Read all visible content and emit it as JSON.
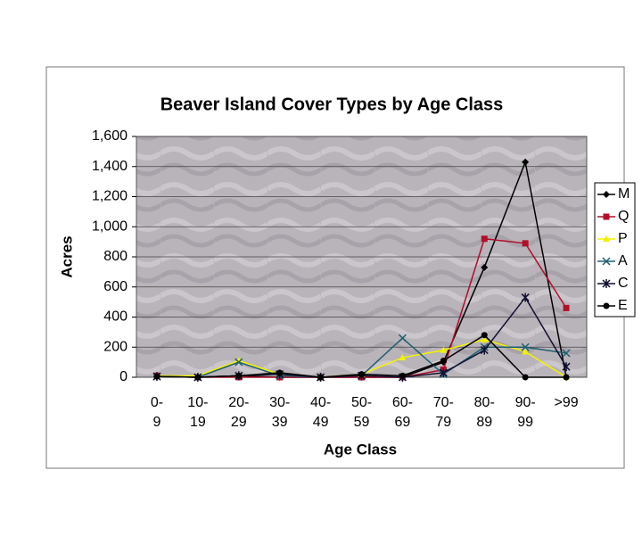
{
  "chart_data": {
    "type": "line",
    "title": "Beaver Island Cover Types by Age Class",
    "x_label": "Age Class",
    "y_label": "Acres",
    "categories": [
      "0-9",
      "10-19",
      "20-29",
      "30-39",
      "40-49",
      "50-59",
      "60-69",
      "70-79",
      "80-89",
      "90-99",
      ">99"
    ],
    "series": [
      {
        "name": "M",
        "color": "#000000",
        "marker": "diamond",
        "values": [
          5,
          0,
          10,
          0,
          0,
          0,
          0,
          100,
          730,
          1430,
          0
        ]
      },
      {
        "name": "Q",
        "color": "#b0102a",
        "marker": "square",
        "values": [
          10,
          0,
          0,
          0,
          0,
          0,
          0,
          50,
          920,
          890,
          460
        ]
      },
      {
        "name": "P",
        "color": "#f2f200",
        "marker": "triangle",
        "values": [
          10,
          10,
          110,
          20,
          0,
          20,
          130,
          180,
          250,
          170,
          0
        ]
      },
      {
        "name": "A",
        "color": "#1f5f70",
        "marker": "x",
        "values": [
          5,
          0,
          100,
          10,
          0,
          10,
          260,
          20,
          200,
          200,
          160
        ]
      },
      {
        "name": "C",
        "color": "#101030",
        "marker": "star",
        "values": [
          5,
          0,
          10,
          20,
          0,
          10,
          0,
          30,
          180,
          530,
          70
        ]
      },
      {
        "name": "E",
        "color": "#000000",
        "marker": "circle",
        "values": [
          5,
          0,
          10,
          30,
          0,
          20,
          10,
          110,
          280,
          0,
          0
        ]
      }
    ],
    "ylim": [
      0,
      1600
    ],
    "yticks": [
      0,
      200,
      400,
      600,
      800,
      {
        "value": 1000,
        "label": "1,000"
      },
      {
        "value": 1200,
        "label": "1,200"
      },
      {
        "value": 1400,
        "label": "1,400"
      },
      {
        "value": 1600,
        "label": "1,600"
      }
    ],
    "grid": true,
    "legend": "right"
  }
}
